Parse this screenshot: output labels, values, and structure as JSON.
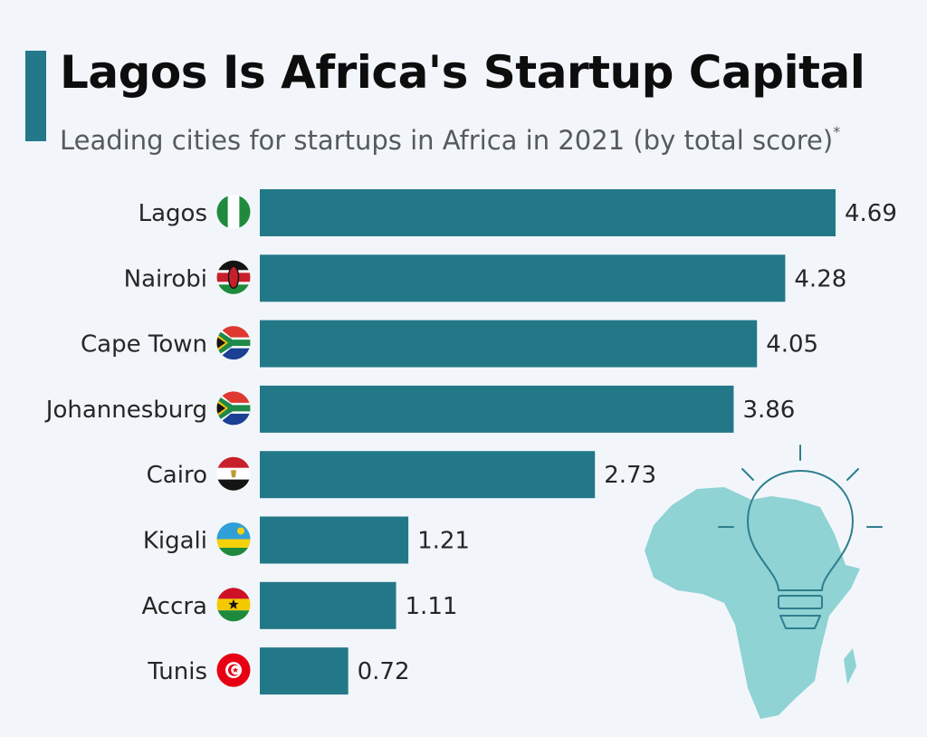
{
  "header": {
    "title": "Lagos Is Africa's Startup Capital",
    "subtitle": "Leading cities for startups in Africa in 2021 (by total score)",
    "subtitle_mark": "*"
  },
  "colors": {
    "accent": "#23788a",
    "bar": "#237887",
    "background": "#f2f6fa",
    "map": "#8fd3d4",
    "bulb_outline": "#2f7e8e"
  },
  "chart_data": {
    "type": "bar",
    "orientation": "horizontal",
    "categories": [
      "Lagos",
      "Nairobi",
      "Cape Town",
      "Johannesburg",
      "Cairo",
      "Kigali",
      "Accra",
      "Tunis"
    ],
    "values": [
      4.69,
      4.28,
      4.05,
      3.86,
      2.73,
      1.21,
      1.11,
      0.72
    ],
    "flags": [
      "nigeria",
      "kenya",
      "south-africa",
      "south-africa",
      "egypt",
      "rwanda",
      "ghana",
      "tunisia"
    ],
    "xlim": [
      0,
      4.69
    ],
    "grid": false,
    "data_labels": true
  },
  "illustration": {
    "map_icon": "africa-map-icon",
    "bulb_icon": "lightbulb-icon"
  }
}
